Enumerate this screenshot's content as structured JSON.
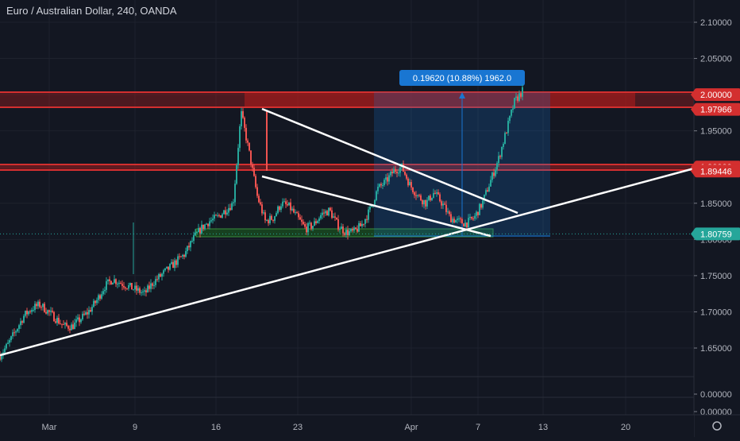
{
  "header": {
    "title": "Euro / Australian Dollar, 240, OANDA"
  },
  "colors": {
    "background": "#131722",
    "up": "#26a69a",
    "down": "#ef5350",
    "resistance": "#b71c1c",
    "support": "#1b5e20",
    "measure": "#1976d2",
    "axis_text": "#b2b5be",
    "price_badge": "#26a69a"
  },
  "measure": {
    "label": "0.19620 (10.88%) 1962.0"
  },
  "chart_data": {
    "type": "candlestick",
    "title": "Euro / Australian Dollar, 240, OANDA",
    "ylim": [
      1.6,
      2.12
    ],
    "y_ticks": [
      "2.10000",
      "2.05000",
      "2.00000",
      "1.95000",
      "1.90000",
      "1.85000",
      "1.80000",
      "1.75000",
      "1.70000",
      "1.65000"
    ],
    "x_tick_labels": [
      "Mar",
      "9",
      "16",
      "23",
      "Apr",
      "7",
      "13",
      "20"
    ],
    "price_labels": [
      {
        "text": "2.00000",
        "value": 2.0,
        "kind": "resistance"
      },
      {
        "text": "1.97966",
        "value": 1.97966,
        "kind": "resistance"
      },
      {
        "text": "1.90000",
        "value": 1.9,
        "kind": "resistance"
      },
      {
        "text": "1.89446",
        "value": 1.89446,
        "kind": "resistance"
      },
      {
        "text": "1.80759",
        "value": 1.80759,
        "kind": "last"
      }
    ],
    "price_series": [
      [
        1.64,
        1.655,
        1.675,
        1.695,
        1.705,
        1.71,
        1.7,
        1.69,
        1.68,
        1.68,
        1.69,
        1.7,
        1.715,
        1.735,
        1.745,
        1.74,
        1.735,
        1.73,
        1.725,
        1.74,
        1.75,
        1.76,
        1.77,
        1.78,
        1.8,
        1.815,
        1.825,
        1.83,
        1.84,
        1.85,
        1.975,
        1.92,
        1.86,
        1.825,
        1.83,
        1.85,
        1.845,
        1.83,
        1.815,
        1.82,
        1.835,
        1.84,
        1.82,
        1.81,
        1.81,
        1.82,
        1.84,
        1.87,
        1.88,
        1.895,
        1.9,
        1.875,
        1.86,
        1.85,
        1.865,
        1.85,
        1.83,
        1.825,
        1.822,
        1.83,
        1.85,
        1.88,
        1.91,
        1.95,
        1.99,
        2.005
      ]
    ],
    "indicator": {
      "type": "volume-like sub-pane",
      "ticks": [
        "0.00000",
        "0.00000"
      ]
    }
  }
}
